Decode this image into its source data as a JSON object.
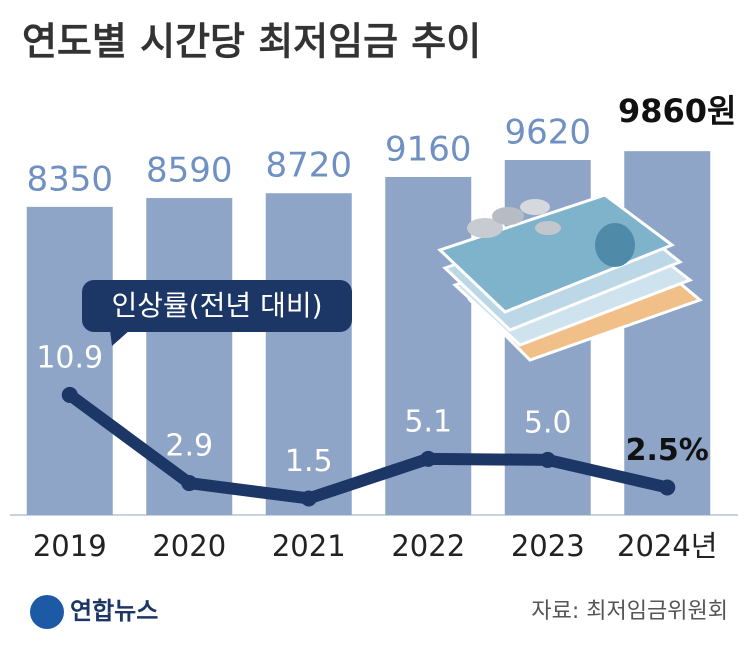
{
  "chart_data": {
    "type": "bar_line",
    "title": "연도별 시간당 최저임금 추이",
    "categories": [
      "2019",
      "2020",
      "2021",
      "2022",
      "2023",
      "2024년"
    ],
    "series": [
      {
        "type": "bar",
        "color": "#8ea5c8",
        "values": [
          8350,
          8590,
          8720,
          9160,
          9620,
          9860
        ],
        "value_labels": [
          "8350",
          "8590",
          "8720",
          "9160",
          "9620",
          "9860원"
        ]
      },
      {
        "type": "line",
        "name": "인상률(전년 대비)",
        "axis": "y2",
        "color": "#1c3766",
        "values": [
          10.9,
          2.9,
          1.5,
          5.1,
          5.0,
          2.5
        ],
        "value_labels": [
          "10.9",
          "2.9",
          "1.5",
          "5.1",
          "5.0",
          "2.5%"
        ]
      }
    ],
    "ylim": [
      0,
      10000
    ],
    "y2lim": [
      0,
      33.5
    ],
    "source": "자료: 최저임금위원회",
    "logo": "연합뉴스"
  }
}
